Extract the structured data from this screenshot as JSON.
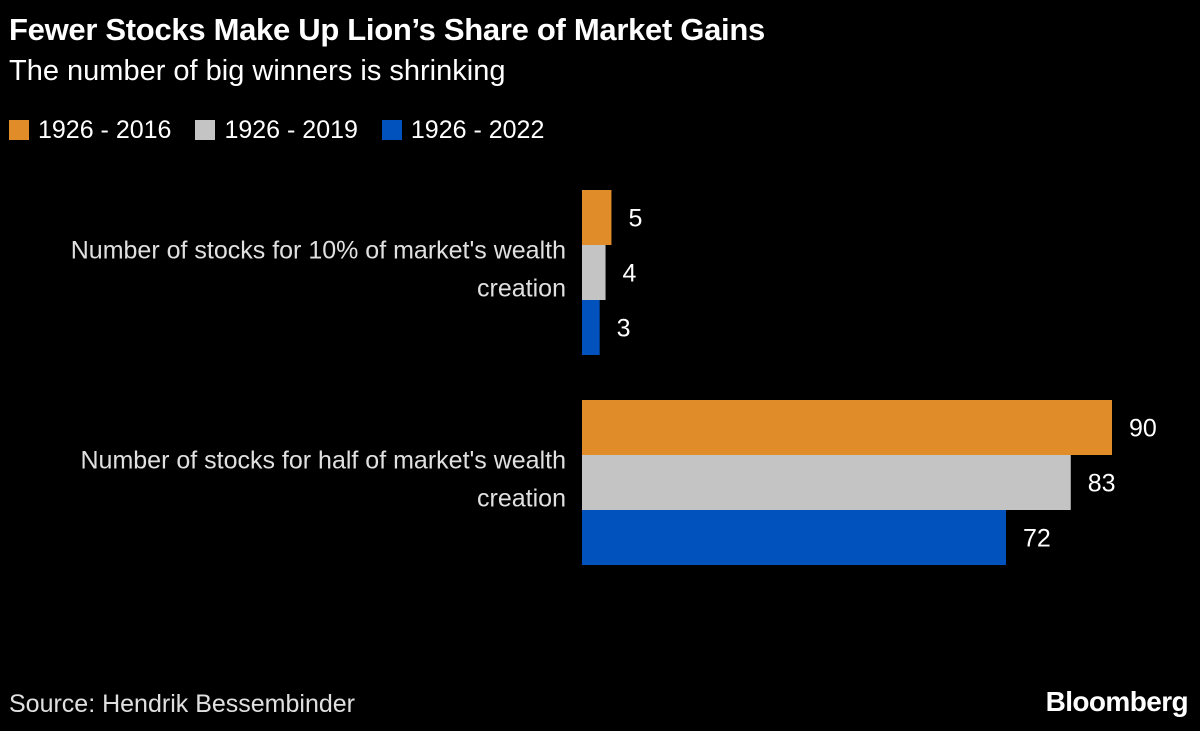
{
  "title": "Fewer Stocks Make Up Lion’s Share of Market Gains",
  "subtitle": "The number of big winners is shrinking",
  "source": "Source: Hendrik Bessembinder",
  "brand": "Bloomberg",
  "colors": {
    "background": "#000000",
    "series": [
      "#e08c29",
      "#c4c4c4",
      "#0252be"
    ]
  },
  "chart_data": {
    "type": "bar",
    "orientation": "horizontal",
    "categories": [
      [
        "Number of stocks for 10% of market's wealth",
        "creation"
      ],
      [
        "Number of stocks for half of market's wealth",
        "creation"
      ]
    ],
    "series": [
      {
        "name": "1926 - 2016",
        "values": [
          5,
          90
        ]
      },
      {
        "name": "1926 - 2019",
        "values": [
          4,
          83
        ]
      },
      {
        "name": "1926 - 2022",
        "values": [
          3,
          72
        ]
      }
    ],
    "xlim": [
      0,
      90
    ],
    "grid": false,
    "legend_position": "top-left",
    "data_labels": true
  }
}
